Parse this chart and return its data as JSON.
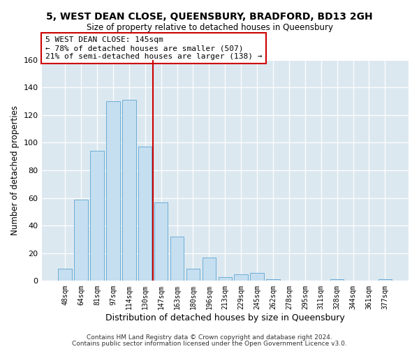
{
  "title": "5, WEST DEAN CLOSE, QUEENSBURY, BRADFORD, BD13 2GH",
  "subtitle": "Size of property relative to detached houses in Queensbury",
  "xlabel": "Distribution of detached houses by size in Queensbury",
  "ylabel": "Number of detached properties",
  "bar_labels": [
    "48sqm",
    "64sqm",
    "81sqm",
    "97sqm",
    "114sqm",
    "130sqm",
    "147sqm",
    "163sqm",
    "180sqm",
    "196sqm",
    "213sqm",
    "229sqm",
    "245sqm",
    "262sqm",
    "278sqm",
    "295sqm",
    "311sqm",
    "328sqm",
    "344sqm",
    "361sqm",
    "377sqm"
  ],
  "bar_values": [
    9,
    59,
    94,
    130,
    131,
    97,
    57,
    32,
    9,
    17,
    3,
    5,
    6,
    1,
    0,
    0,
    0,
    1,
    0,
    0,
    1
  ],
  "bar_color": "#c6dff0",
  "bar_edge_color": "#6baed6",
  "ylim": [
    0,
    160
  ],
  "yticks": [
    0,
    20,
    40,
    60,
    80,
    100,
    120,
    140,
    160
  ],
  "vline_x": 5.5,
  "vline_color": "#cc0000",
  "annotation_title": "5 WEST DEAN CLOSE: 145sqm",
  "annotation_line1": "← 78% of detached houses are smaller (507)",
  "annotation_line2": "21% of semi-detached houses are larger (138) →",
  "annotation_box_color": "#cc0000",
  "plot_bg_color": "#dce8f0",
  "fig_bg_color": "#ffffff",
  "footer1": "Contains HM Land Registry data © Crown copyright and database right 2024.",
  "footer2": "Contains public sector information licensed under the Open Government Licence v3.0."
}
